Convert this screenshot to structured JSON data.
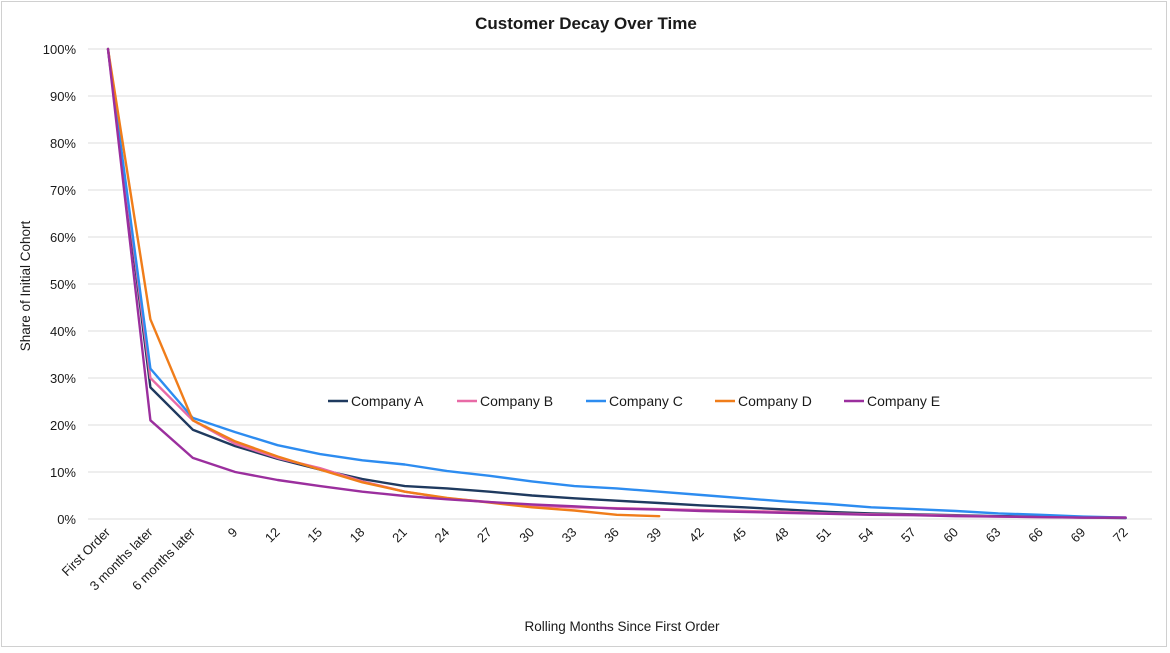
{
  "chart_data": {
    "type": "line",
    "title": "Customer Decay Over Time",
    "xlabel": "Rolling Months Since First Order",
    "ylabel": "Share of Initial Cohort",
    "ylim": [
      0,
      100
    ],
    "yticks": [
      "0%",
      "10%",
      "20%",
      "30%",
      "40%",
      "50%",
      "60%",
      "70%",
      "80%",
      "90%",
      "100%"
    ],
    "grid": true,
    "legend_position": "center",
    "categories": [
      "First Order",
      "3 months later",
      "6 months later",
      "9",
      "12",
      "15",
      "18",
      "21",
      "24",
      "27",
      "30",
      "33",
      "36",
      "39",
      "42",
      "45",
      "48",
      "51",
      "54",
      "57",
      "60",
      "63",
      "66",
      "69",
      "72"
    ],
    "series": [
      {
        "name": "Company A",
        "color": "#1f3a5f",
        "values": [
          100,
          28,
          19,
          15.5,
          12.8,
          10.5,
          8.5,
          7,
          6.5,
          5.8,
          5,
          4.4,
          3.9,
          3.4,
          2.9,
          2.5,
          2,
          1.5,
          1.2,
          1,
          0.8,
          0.6,
          0.5,
          0.3,
          0.2
        ]
      },
      {
        "name": "Company B",
        "color": "#e86aa6",
        "values": [
          100,
          30,
          21,
          16,
          13,
          10.8,
          8,
          5.8,
          4.4,
          3.6,
          2.8,
          2.5,
          2.3,
          2.1,
          1.9,
          1.7,
          1.5,
          1.2,
          1,
          0.9,
          0.7,
          0.5,
          0.4,
          0.3,
          0.3
        ]
      },
      {
        "name": "Company C",
        "color": "#2d8cf0",
        "values": [
          100,
          32,
          21.5,
          18.5,
          15.7,
          13.8,
          12.5,
          11.6,
          10.2,
          9.2,
          8,
          7,
          6.5,
          5.8,
          5.1,
          4.4,
          3.7,
          3.2,
          2.5,
          2.1,
          1.7,
          1.2,
          0.9,
          0.5,
          0.3
        ]
      },
      {
        "name": "Company D",
        "color": "#f07d1a",
        "values": [
          100,
          42.5,
          21,
          16.5,
          13.3,
          10.5,
          7.8,
          5.8,
          4.5,
          3.5,
          2.5,
          1.8,
          0.9,
          0.6,
          null,
          null,
          null,
          null,
          null,
          null,
          null,
          null,
          null,
          null,
          null
        ]
      },
      {
        "name": "Company E",
        "color": "#9b2f9e",
        "values": [
          100,
          21,
          13,
          10,
          8.3,
          7,
          5.8,
          4.9,
          4.2,
          3.6,
          3.1,
          2.7,
          2.2,
          2,
          1.7,
          1.5,
          1.3,
          1.1,
          0.9,
          0.8,
          0.6,
          0.5,
          0.4,
          0.3,
          0.3
        ]
      }
    ]
  }
}
